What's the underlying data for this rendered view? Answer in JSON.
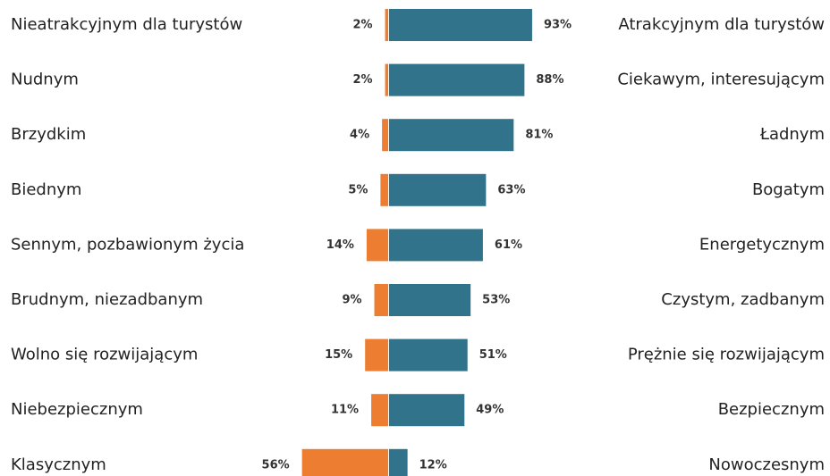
{
  "chart_data": {
    "type": "diverging_bar",
    "categories": [
      "Nieatrakcyjnym dla turystów",
      "Nudnym",
      "Brzydkim",
      "Biednym",
      "Sennym, pozbawionym życia",
      "Brudnym, niezadbanym",
      "Wolno się rozwijającym",
      "Niebezpiecznym",
      "Klasycznym"
    ],
    "right_labels": [
      "Atrakcyjnym dla turystów",
      "Ciekawym, interesującym",
      "Ładnym",
      "Bogatym",
      "Energetycznym",
      "Czystym, zadbanym",
      "Prężnie się rozwijającym",
      "Bezpiecznym",
      "Nowoczesnym"
    ],
    "series": [
      {
        "color": "#ed7d31",
        "side": "left",
        "values": [
          2,
          2,
          4,
          5,
          14,
          9,
          15,
          11,
          56
        ],
        "value_labels": [
          "2%",
          "2%",
          "4%",
          "5%",
          "14%",
          "9%",
          "15%",
          "11%",
          "56%"
        ]
      },
      {
        "color": "#31738a",
        "side": "right",
        "values": [
          93,
          88,
          81,
          63,
          61,
          53,
          51,
          49,
          12
        ],
        "value_labels": [
          "93%",
          "88%",
          "81%",
          "63%",
          "61%",
          "53%",
          "51%",
          "49%",
          "12%"
        ]
      }
    ]
  }
}
